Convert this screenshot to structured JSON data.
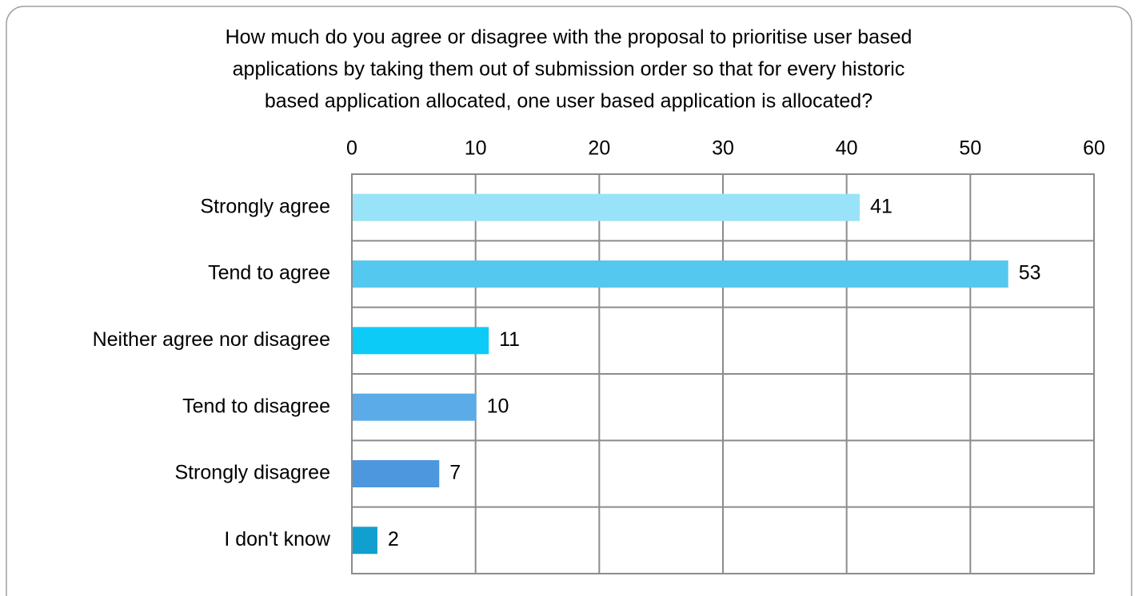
{
  "chart_data": {
    "type": "bar",
    "orientation": "horizontal",
    "title": [
      "How much do you agree or disagree with the proposal to prioritise user based",
      "applications by taking them out of submission order so that for every historic",
      "based application allocated, one user based application is allocated?"
    ],
    "categories": [
      "Strongly agree",
      "Tend to agree",
      "Neither agree nor disagree",
      "Tend to disagree",
      "Strongly disagree",
      "I don't know"
    ],
    "values": [
      41,
      53,
      11,
      10,
      7,
      2
    ],
    "colors": [
      "#99e3f8",
      "#55c8ef",
      "#0ccbf7",
      "#5aabe8",
      "#4c97de",
      "#109fce"
    ],
    "xlim": [
      0,
      60
    ],
    "xticks": [
      0,
      10,
      20,
      30,
      40,
      50,
      60
    ],
    "grid": true
  }
}
